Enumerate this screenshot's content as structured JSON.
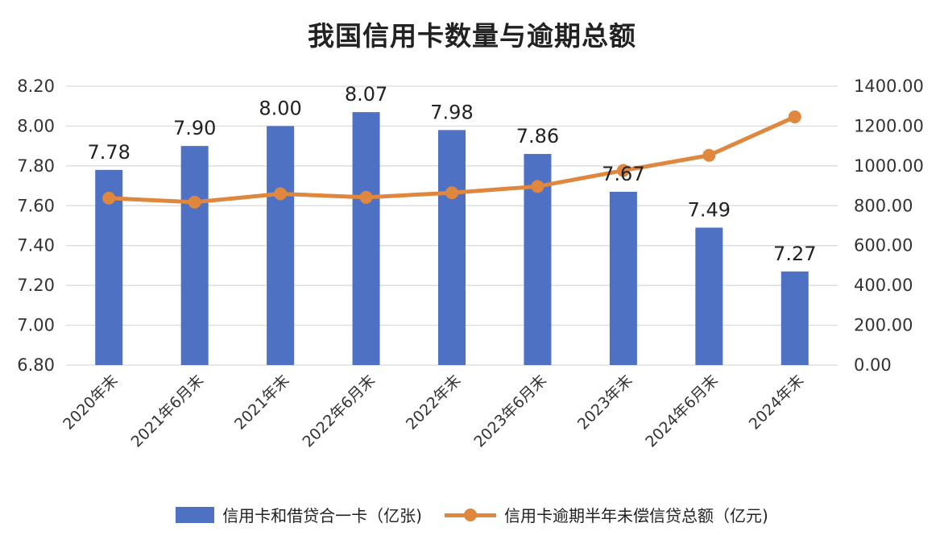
{
  "chart_data": {
    "type": "bar",
    "title": "我国信用卡数量与逾期总额",
    "categories": [
      "2020年末",
      "2021年6月末",
      "2021年末",
      "2022年6月末",
      "2022年末",
      "2023年6月末",
      "2023年末",
      "2024年6月末",
      "2024年末"
    ],
    "series": [
      {
        "name": "信用卡和借贷合一卡（亿张)",
        "type": "bar",
        "axis": "left",
        "color": "#4f71c4",
        "values": [
          7.78,
          7.9,
          8.0,
          8.07,
          7.98,
          7.86,
          7.67,
          7.49,
          7.27
        ],
        "labels": [
          "7.78",
          "7.90",
          "8.00",
          "8.07",
          "7.98",
          "7.86",
          "7.67",
          "7.49",
          "7.27"
        ]
      },
      {
        "name": "信用卡逾期半年未偿信贷总额（亿元)",
        "type": "line",
        "axis": "right",
        "color": "#e0873f",
        "values": [
          838,
          818,
          860,
          842,
          865,
          897,
          977,
          1053,
          1246
        ]
      }
    ],
    "y_left": {
      "ylim": [
        6.8,
        8.2
      ],
      "ticks": [
        "6.80",
        "7.00",
        "7.20",
        "7.40",
        "7.60",
        "7.80",
        "8.00",
        "8.20"
      ]
    },
    "y_right": {
      "ylim": [
        0,
        1400
      ],
      "ticks": [
        "0.00",
        "200.00",
        "400.00",
        "600.00",
        "800.00",
        "1000.00",
        "1200.00",
        "1400.00"
      ]
    },
    "grid": true,
    "legend_position": "bottom"
  }
}
